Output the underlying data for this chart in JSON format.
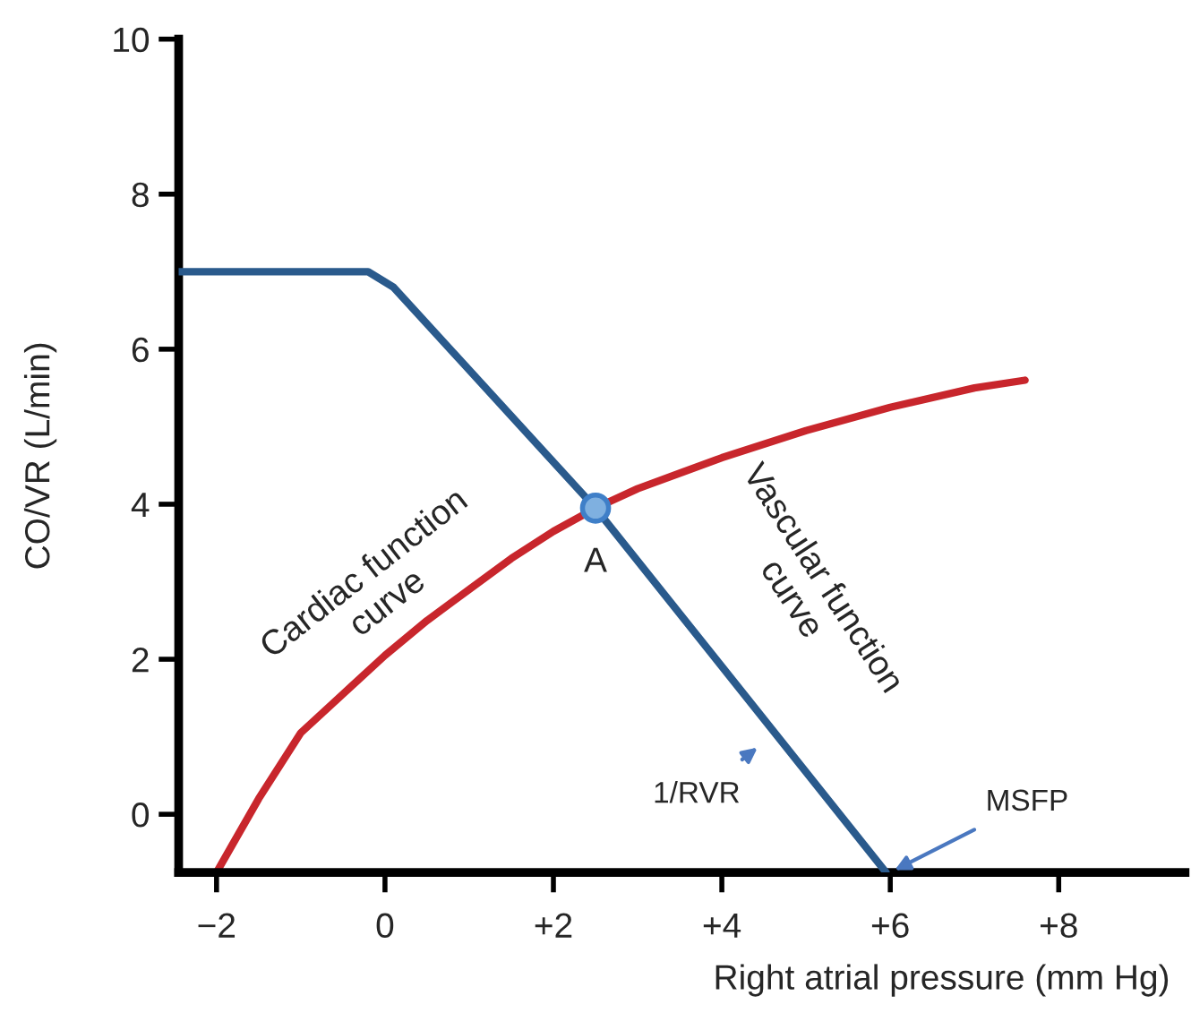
{
  "chart_data": {
    "type": "line",
    "xlabel": "Right atrial pressure (mm Hg)",
    "ylabel": "CO/VR (L/min)",
    "xlim": [
      -2.45,
      9.5
    ],
    "ylim": [
      -0.75,
      10
    ],
    "xticks": [
      {
        "value": -2,
        "label": "−2"
      },
      {
        "value": 0,
        "label": "0"
      },
      {
        "value": 2,
        "label": "+2"
      },
      {
        "value": 4,
        "label": "+4"
      },
      {
        "value": 6,
        "label": "+6"
      },
      {
        "value": 8,
        "label": "+8"
      }
    ],
    "yticks": [
      0,
      2,
      4,
      6,
      8,
      10
    ],
    "grid": false,
    "line_style": "solid",
    "series": [
      {
        "color": "#c8262c",
        "x": [
          -2,
          -1.5,
          -1,
          -0.5,
          0,
          0.5,
          1,
          1.5,
          2,
          2.5,
          3,
          4,
          5,
          6,
          7,
          7.6
        ],
        "values": [
          -0.75,
          0.2,
          1.05,
          1.55,
          2.05,
          2.5,
          2.9,
          3.3,
          3.65,
          3.95,
          4.2,
          4.6,
          4.95,
          5.25,
          5.5,
          5.6
        ]
      },
      {
        "color": "#2a5a8c",
        "x": [
          -2.45,
          -0.2,
          0.1,
          2.5,
          5.95
        ],
        "values": [
          7,
          7,
          6.8,
          3.95,
          -0.75
        ]
      },
      {
        "type": "scatter",
        "color": "#7fb0e0",
        "marker": "circle",
        "x": [
          2.5
        ],
        "values": [
          3.95
        ]
      }
    ],
    "annotations": [
      "Cardiac function\ncurve",
      "Vascular function\ncurve",
      {
        "text": "A",
        "x": 2.5,
        "y": 3.95
      },
      "1/RVR",
      {
        "text": "MSFP",
        "x": 6,
        "y": -0.75
      }
    ]
  }
}
